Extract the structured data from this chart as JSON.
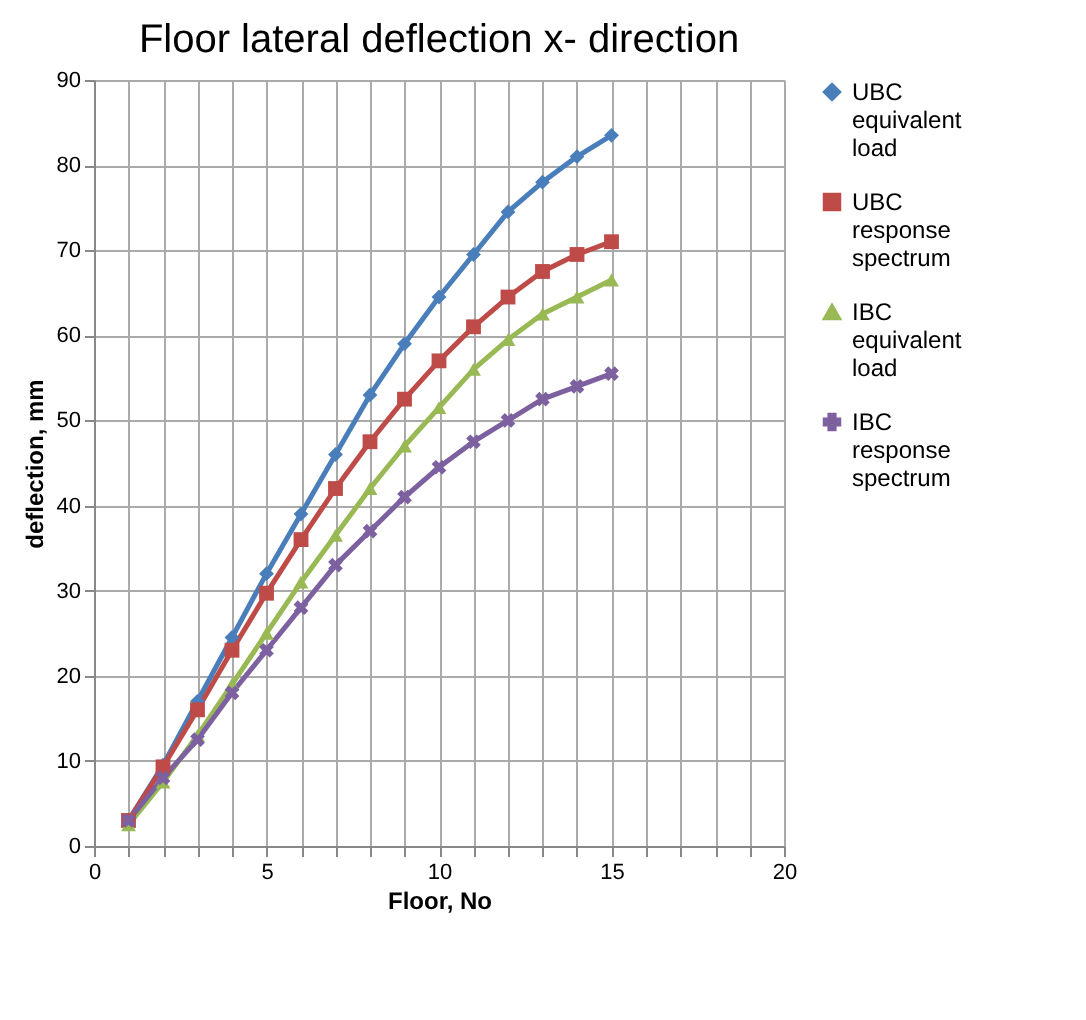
{
  "chart_data": {
    "type": "line",
    "title": "Floor lateral deflection x- direction",
    "xlabel": "Floor, No",
    "ylabel": "deflection, mm",
    "x": [
      1,
      2,
      3,
      4,
      5,
      6,
      7,
      8,
      9,
      10,
      11,
      12,
      13,
      14,
      15
    ],
    "series": [
      {
        "name": "UBC equivalent load",
        "color": "#4a7ebb",
        "marker": "diamond",
        "values": [
          3,
          9.5,
          17,
          24.5,
          32,
          39,
          46,
          53,
          59,
          64.5,
          69.5,
          74.5,
          78,
          81,
          83.5
        ]
      },
      {
        "name": "UBC response spectrum",
        "color": "#be4b48",
        "marker": "square",
        "values": [
          3,
          9.3,
          16,
          23,
          29.7,
          36,
          42,
          47.5,
          52.5,
          57,
          61,
          64.5,
          67.5,
          69.5,
          71
        ]
      },
      {
        "name": "IBC equivalent load",
        "color": "#98b954",
        "marker": "triangle",
        "values": [
          2.5,
          7.5,
          13,
          19,
          25,
          31,
          36.5,
          42,
          47,
          51.5,
          56,
          59.5,
          62.5,
          64.5,
          66.5
        ]
      },
      {
        "name": "IBC response spectrum",
        "color": "#7d60a0",
        "marker": "cross",
        "values": [
          3,
          8,
          12.5,
          18,
          23,
          28,
          33,
          37,
          41,
          44.5,
          47.5,
          50,
          52.5,
          54,
          55.5
        ]
      }
    ],
    "xlim": [
      0,
      20
    ],
    "ylim": [
      0,
      90
    ],
    "xticks": [
      0,
      {
        "value": 1,
        "label": null
      },
      {
        "value": 2,
        "label": null
      },
      {
        "value": 3,
        "label": null
      },
      {
        "value": 4,
        "label": null
      },
      5,
      {
        "value": 6,
        "label": null
      },
      {
        "value": 7,
        "label": null
      },
      {
        "value": 8,
        "label": null
      },
      {
        "value": 9,
        "label": null
      },
      10,
      {
        "value": 11,
        "label": null
      },
      {
        "value": 12,
        "label": null
      },
      {
        "value": 13,
        "label": null
      },
      {
        "value": 14,
        "label": null
      },
      15,
      {
        "value": 16,
        "label": null
      },
      {
        "value": 17,
        "label": null
      },
      {
        "value": 18,
        "label": null
      },
      {
        "value": 19,
        "label": null
      },
      20
    ],
    "yticks": [
      0,
      10,
      20,
      30,
      40,
      50,
      60,
      70,
      80,
      90
    ],
    "grid": true,
    "legend": "right",
    "line_style": "solid"
  }
}
